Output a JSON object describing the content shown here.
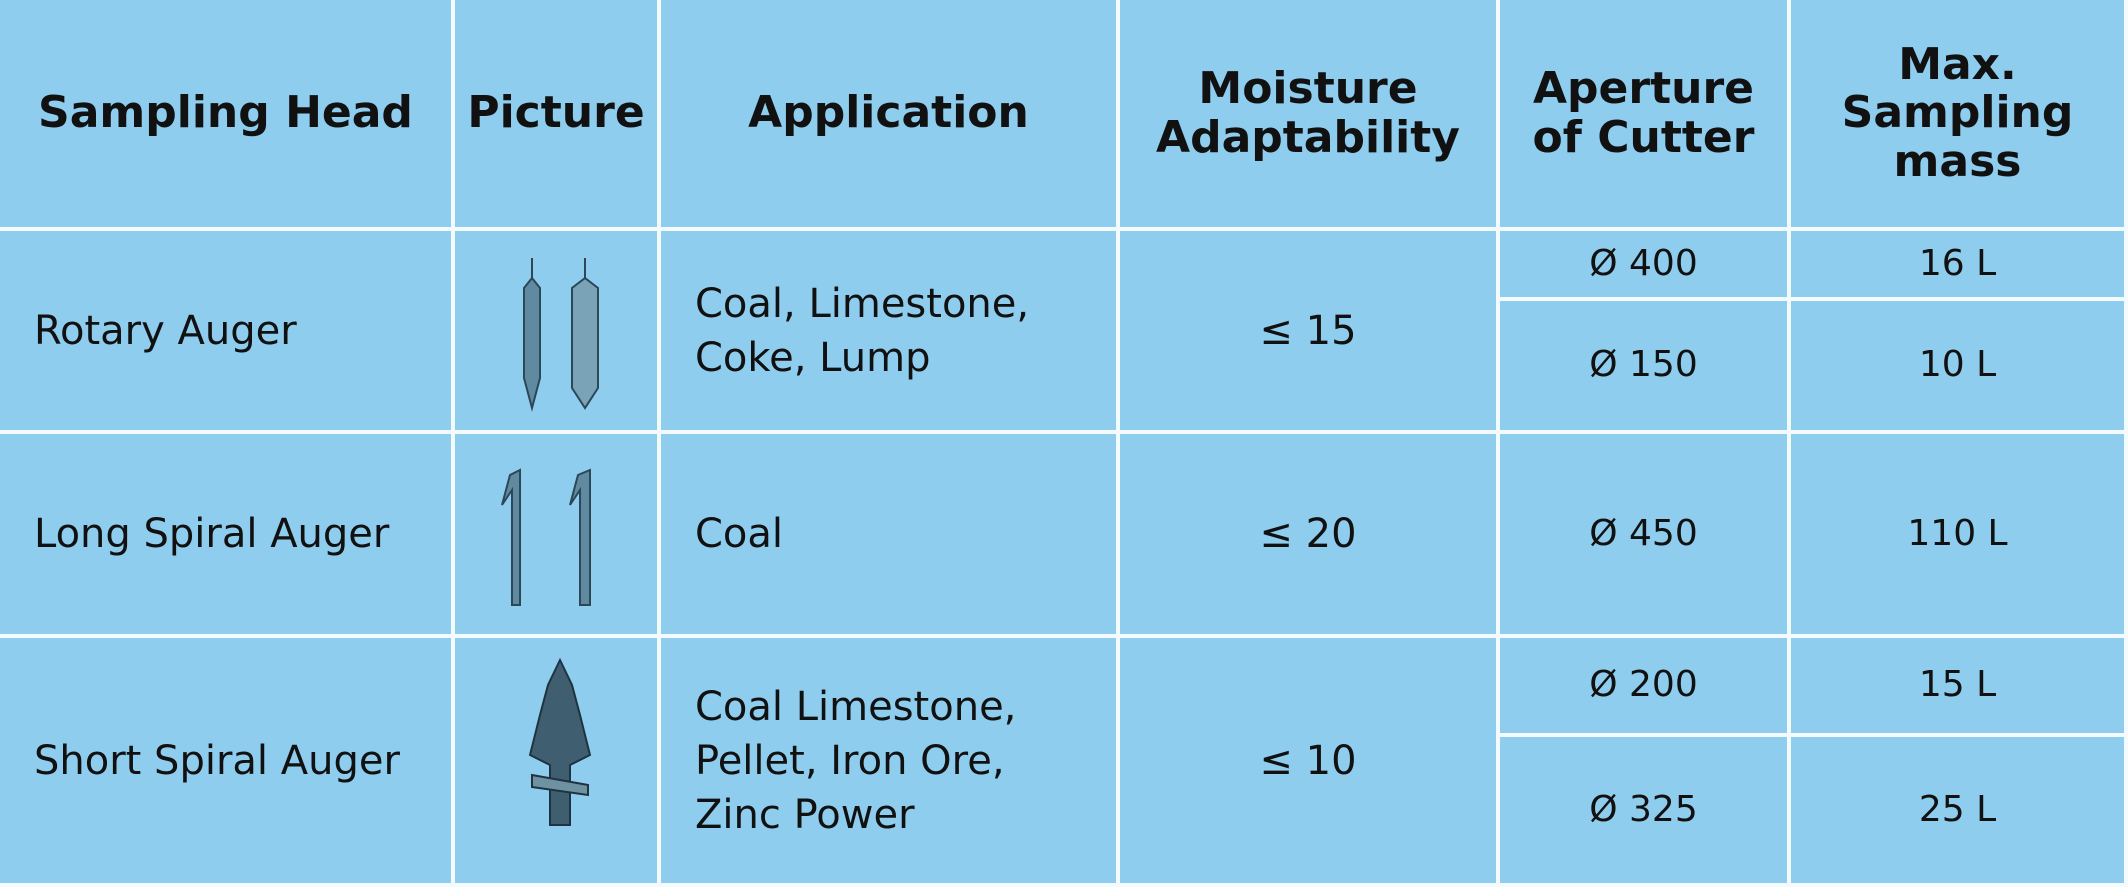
{
  "table": {
    "header": [
      "Sampling Head",
      "Picture",
      "Application",
      "Moisture Adaptability",
      "Aperture of Cutter",
      "Max. Sampling mass"
    ],
    "rows": [
      {
        "sampling_head": "Rotary Auger",
        "application": "Coal, Limestone, Coke, Lump",
        "moisture": "≤ 15",
        "apertures": [
          "Ø 400",
          "Ø 150"
        ],
        "masses": [
          "16 L",
          "10 L"
        ]
      },
      {
        "sampling_head": "Long Spiral Auger",
        "application": "Coal",
        "moisture": "≤ 20",
        "apertures": [
          "Ø 450"
        ],
        "masses": [
          "110 L"
        ]
      },
      {
        "sampling_head": "Short Spiral Auger",
        "application": "Coal Limestone, Pellet, Iron Ore, Zinc Power",
        "moisture": "≤ 10",
        "apertures": [
          "Ø 200",
          "Ø 325"
        ],
        "masses": [
          "15 L",
          "25 L"
        ]
      }
    ]
  }
}
